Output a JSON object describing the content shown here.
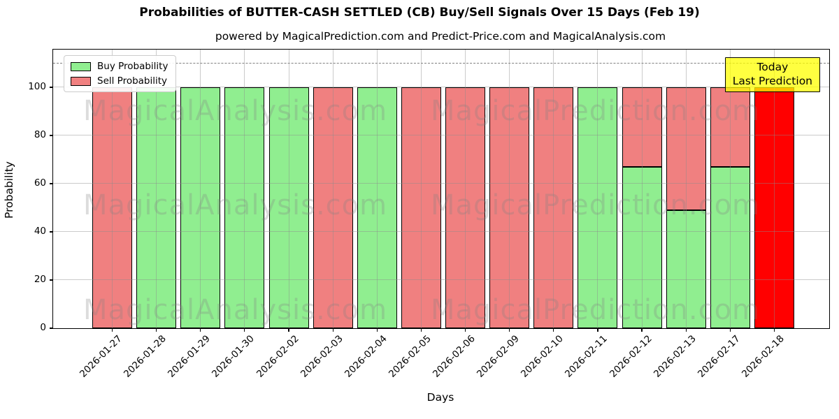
{
  "title": "Probabilities of BUTTER-CASH SETTLED (CB) Buy/Sell Signals Over 15 Days (Feb 19)",
  "subtitle": "powered by MagicalPrediction.com and Predict-Price.com and MagicalAnalysis.com",
  "legend": {
    "buy_label": "Buy Probability",
    "sell_label": "Sell Probability"
  },
  "annotation": {
    "line1": "Today",
    "line2": "Last Prediction",
    "bg_color": "#FFFF00"
  },
  "watermarks": {
    "left": "MagicalAnalysis.com",
    "right": "MagicalPrediction.com"
  },
  "colors": {
    "buy": "#90EE90",
    "sell": "#F08080",
    "today": "#FF0000",
    "grid": "#8c8c8c",
    "dashed_line": "#7f7f7f",
    "annotation_bg": "#FFFF00"
  },
  "chart_data": {
    "type": "bar",
    "stacked": true,
    "title": "Probabilities of BUTTER-CASH SETTLED (CB) Buy/Sell Signals Over 15 Days (Feb 19)",
    "xlabel": "Days",
    "ylabel": "Probability",
    "ylim": [
      0,
      115.7
    ],
    "yticks": [
      0,
      20,
      40,
      60,
      80,
      100
    ],
    "grid": true,
    "legend_position": "upper left",
    "dashed_line_y": 110,
    "categories": [
      "2026-01-27",
      "2026-01-28",
      "2026-01-29",
      "2026-01-30",
      "2026-02-02",
      "2026-02-03",
      "2026-02-04",
      "2026-02-05",
      "2026-02-06",
      "2026-02-09",
      "2026-02-10",
      "2026-02-11",
      "2026-02-12",
      "2026-02-13",
      "2026-02-17",
      "2026-02-18"
    ],
    "series": [
      {
        "name": "Buy Probability",
        "color": "#90EE90",
        "values": [
          0,
          100,
          100,
          100,
          100,
          0,
          100,
          0,
          0,
          0,
          0,
          100,
          67,
          49,
          67,
          0
        ]
      },
      {
        "name": "Sell Probability",
        "color": "#F08080",
        "values": [
          100,
          0,
          0,
          0,
          0,
          100,
          0,
          100,
          100,
          100,
          100,
          0,
          33,
          51,
          33,
          100
        ]
      }
    ],
    "today_index": 15,
    "today_bar_color": "#FF0000"
  }
}
